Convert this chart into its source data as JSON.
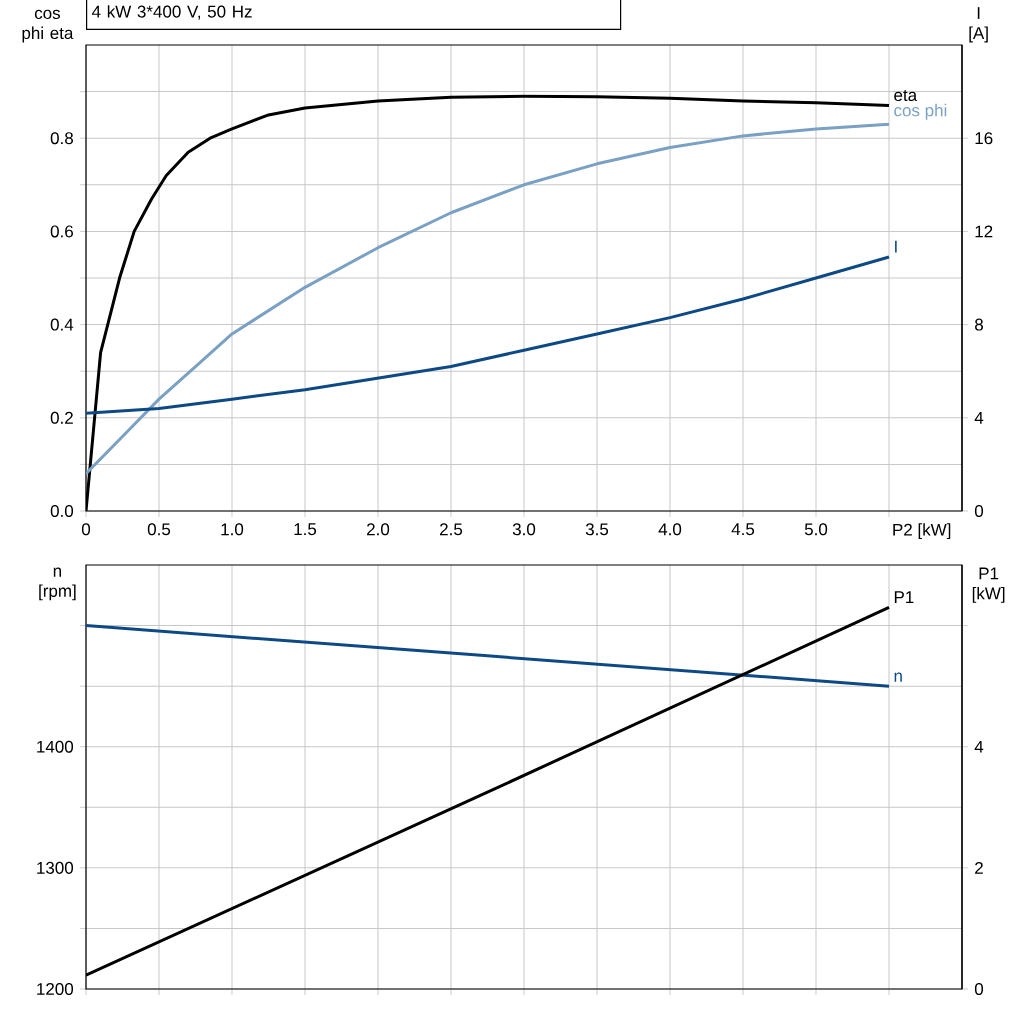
{
  "chart_data": [
    {
      "type": "line",
      "title": "4 kW 3*400 V, 50 Hz",
      "xlabel": "P2 [kW]",
      "ylabel": "cos phi eta",
      "y2label": "I [A]",
      "xlim": [
        0,
        6
      ],
      "xticks": [
        0,
        0.5,
        {
          "value": 1,
          "label": "1.0"
        },
        1.5,
        {
          "value": 2,
          "label": "2.0"
        },
        2.5,
        {
          "value": 3,
          "label": "3.0"
        },
        3.5,
        {
          "value": 4,
          "label": "4.0"
        },
        4.5,
        {
          "value": 5,
          "label": "5.0"
        },
        {
          "value": 5.5,
          "label": null
        }
      ],
      "ylim": [
        0,
        1
      ],
      "yticks": [
        {
          "value": 0,
          "label": "0.0"
        },
        {
          "value": 0.1,
          "label": null
        },
        0.2,
        {
          "value": 0.3,
          "label": null
        },
        0.4,
        {
          "value": 0.5,
          "label": null
        },
        0.6,
        {
          "value": 0.7,
          "label": null
        },
        0.8,
        {
          "value": 0.9,
          "label": null
        }
      ],
      "y2lim": [
        0,
        20
      ],
      "y2ticks": [
        0,
        4,
        8,
        12,
        16
      ],
      "grid": true,
      "series": [
        {
          "name": "eta",
          "color": "#000000",
          "x": [
            0,
            0.1,
            0.23,
            0.33,
            0.45,
            0.55,
            0.7,
            0.85,
            1.0,
            1.25,
            1.5,
            2.0,
            2.5,
            3.0,
            3.5,
            4.0,
            4.5,
            5.0,
            5.5
          ],
          "values": [
            0,
            0.34,
            0.5,
            0.6,
            0.67,
            0.72,
            0.77,
            0.8,
            0.82,
            0.85,
            0.865,
            0.88,
            0.888,
            0.89,
            0.889,
            0.886,
            0.88,
            0.876,
            0.87
          ]
        },
        {
          "name": "cos phi",
          "color": "#7aa0c4",
          "x": [
            0,
            0.25,
            0.5,
            0.75,
            1.0,
            1.5,
            2.0,
            2.5,
            3.0,
            3.5,
            4.0,
            4.5,
            5.0,
            5.5
          ],
          "values": [
            0.08,
            0.16,
            0.24,
            0.31,
            0.38,
            0.48,
            0.565,
            0.64,
            0.7,
            0.745,
            0.78,
            0.805,
            0.82,
            0.83
          ]
        },
        {
          "name": "I",
          "color": "#0d4a85",
          "axis": "y2",
          "x": [
            0,
            0.5,
            1.0,
            1.5,
            2.0,
            2.5,
            3.0,
            3.5,
            4.0,
            4.5,
            5.0,
            5.5
          ],
          "values": [
            4.2,
            4.4,
            4.8,
            5.2,
            5.7,
            6.2,
            6.9,
            7.6,
            8.3,
            9.1,
            10.0,
            10.9
          ]
        }
      ]
    },
    {
      "type": "line",
      "ylabel": "n [rpm]",
      "y2label": "P1 [kW]",
      "tick_labels": "y",
      "xlim": [
        0,
        6
      ],
      "xticks": [
        {
          "value": 0,
          "label": null
        },
        {
          "value": 0.5,
          "label": null
        },
        {
          "value": 1,
          "label": null
        },
        {
          "value": 1.5,
          "label": null
        },
        {
          "value": 2,
          "label": null
        },
        {
          "value": 2.5,
          "label": null
        },
        {
          "value": 3,
          "label": null
        },
        {
          "value": 3.5,
          "label": null
        },
        {
          "value": 4,
          "label": null
        },
        {
          "value": 4.5,
          "label": null
        },
        {
          "value": 5,
          "label": null
        },
        {
          "value": 5.5,
          "label": null
        }
      ],
      "ylim": [
        1200,
        1550
      ],
      "yticks": [
        1200,
        {
          "value": 1250,
          "label": null
        },
        1300,
        {
          "value": 1350,
          "label": null
        },
        1400,
        {
          "value": 1450,
          "label": null
        },
        {
          "value": 1500,
          "label": null
        }
      ],
      "y2lim": [
        0,
        7
      ],
      "y2ticks": [
        0,
        2,
        4,
        {
          "value": 6,
          "label": null
        }
      ],
      "grid": true,
      "series": [
        {
          "name": "P1",
          "color": "#000000",
          "axis": "y2",
          "x": [
            0,
            2.75,
            5.5
          ],
          "values": [
            0.23,
            3.25,
            6.3
          ]
        },
        {
          "name": "n",
          "color": "#0d4a85",
          "x": [
            0,
            2.75,
            5.5
          ],
          "values": [
            1500,
            1475,
            1450
          ]
        }
      ]
    }
  ]
}
